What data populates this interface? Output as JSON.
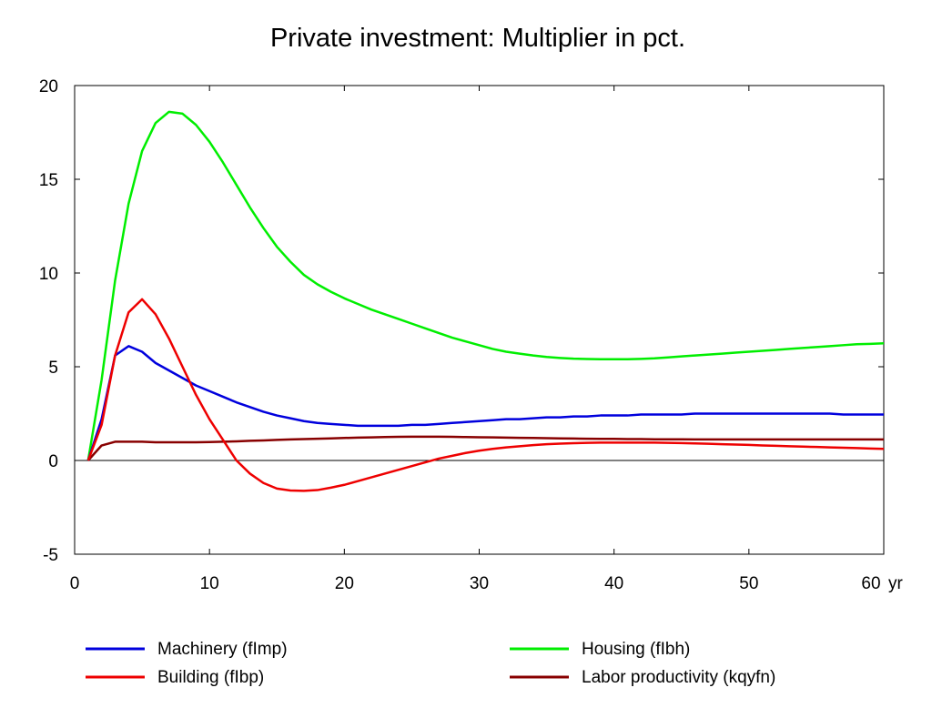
{
  "chart_data": {
    "type": "line",
    "title": "Private investment: Multiplier in pct.",
    "xlabel": "",
    "ylabel": "",
    "x_unit_label": "yr",
    "xlim": [
      0,
      60
    ],
    "ylim": [
      -5,
      20
    ],
    "x_ticks": [
      "0",
      "10",
      "20",
      "30",
      "40",
      "50",
      "60"
    ],
    "y_ticks": [
      "20",
      "15",
      "10",
      "5",
      "0",
      "-5"
    ],
    "x_tick_values": [
      0,
      10,
      20,
      30,
      40,
      50,
      60
    ],
    "y_tick_values": [
      20,
      15,
      10,
      5,
      0,
      -5
    ],
    "grid": false,
    "zero_line": true,
    "legend_position": "bottom",
    "x": [
      1,
      2,
      3,
      4,
      5,
      6,
      7,
      8,
      9,
      10,
      11,
      12,
      13,
      14,
      15,
      16,
      17,
      18,
      19,
      20,
      21,
      22,
      23,
      24,
      25,
      26,
      27,
      28,
      29,
      30,
      31,
      32,
      33,
      34,
      35,
      36,
      37,
      38,
      39,
      40,
      41,
      42,
      43,
      44,
      45,
      46,
      47,
      48,
      49,
      50,
      51,
      52,
      53,
      54,
      55,
      56,
      57,
      58,
      59,
      60
    ],
    "series": [
      {
        "name": "Machinery (fImp)",
        "color": "#0000dd",
        "values": [
          0,
          2.2,
          5.6,
          6.1,
          5.8,
          5.2,
          4.8,
          4.4,
          4.0,
          3.7,
          3.4,
          3.1,
          2.85,
          2.6,
          2.4,
          2.25,
          2.1,
          2.0,
          1.95,
          1.9,
          1.85,
          1.85,
          1.85,
          1.85,
          1.9,
          1.9,
          1.95,
          2.0,
          2.05,
          2.1,
          2.15,
          2.2,
          2.2,
          2.25,
          2.3,
          2.3,
          2.35,
          2.35,
          2.4,
          2.4,
          2.4,
          2.45,
          2.45,
          2.45,
          2.45,
          2.5,
          2.5,
          2.5,
          2.5,
          2.5,
          2.5,
          2.5,
          2.5,
          2.5,
          2.5,
          2.5,
          2.45,
          2.45,
          2.45,
          2.45
        ]
      },
      {
        "name": "Housing (fIbh)",
        "color": "#00ee00",
        "values": [
          0,
          4.3,
          9.6,
          13.7,
          16.5,
          18.0,
          18.6,
          18.5,
          17.9,
          17.0,
          15.9,
          14.7,
          13.5,
          12.4,
          11.4,
          10.6,
          9.9,
          9.4,
          9.0,
          8.65,
          8.35,
          8.05,
          7.8,
          7.55,
          7.3,
          7.05,
          6.8,
          6.55,
          6.35,
          6.15,
          5.95,
          5.8,
          5.7,
          5.6,
          5.52,
          5.47,
          5.43,
          5.41,
          5.4,
          5.4,
          5.4,
          5.42,
          5.45,
          5.5,
          5.55,
          5.6,
          5.65,
          5.7,
          5.75,
          5.8,
          5.85,
          5.9,
          5.95,
          6.0,
          6.05,
          6.1,
          6.15,
          6.2,
          6.22,
          6.25
        ]
      },
      {
        "name": "Building (fIbp)",
        "color": "#ee0000",
        "values": [
          0,
          1.9,
          5.6,
          7.9,
          8.6,
          7.8,
          6.5,
          5.0,
          3.5,
          2.2,
          1.1,
          0.0,
          -0.7,
          -1.2,
          -1.5,
          -1.6,
          -1.62,
          -1.58,
          -1.45,
          -1.3,
          -1.1,
          -0.9,
          -0.7,
          -0.5,
          -0.3,
          -0.1,
          0.1,
          0.25,
          0.4,
          0.52,
          0.62,
          0.7,
          0.76,
          0.82,
          0.87,
          0.9,
          0.92,
          0.94,
          0.95,
          0.95,
          0.95,
          0.95,
          0.95,
          0.94,
          0.93,
          0.91,
          0.89,
          0.87,
          0.85,
          0.83,
          0.8,
          0.78,
          0.76,
          0.74,
          0.72,
          0.7,
          0.68,
          0.66,
          0.64,
          0.62
        ]
      },
      {
        "name": "Labor productivity (kqyfn)",
        "color": "#880000",
        "values": [
          0,
          0.8,
          1.0,
          1.0,
          1.0,
          0.97,
          0.97,
          0.97,
          0.97,
          0.98,
          1.0,
          1.02,
          1.05,
          1.07,
          1.1,
          1.12,
          1.14,
          1.16,
          1.18,
          1.2,
          1.22,
          1.23,
          1.25,
          1.26,
          1.27,
          1.27,
          1.27,
          1.26,
          1.25,
          1.24,
          1.23,
          1.22,
          1.21,
          1.2,
          1.19,
          1.18,
          1.17,
          1.16,
          1.15,
          1.15,
          1.14,
          1.14,
          1.13,
          1.13,
          1.13,
          1.12,
          1.12,
          1.12,
          1.12,
          1.12,
          1.12,
          1.12,
          1.12,
          1.12,
          1.12,
          1.12,
          1.12,
          1.12,
          1.12,
          1.12
        ]
      }
    ]
  }
}
